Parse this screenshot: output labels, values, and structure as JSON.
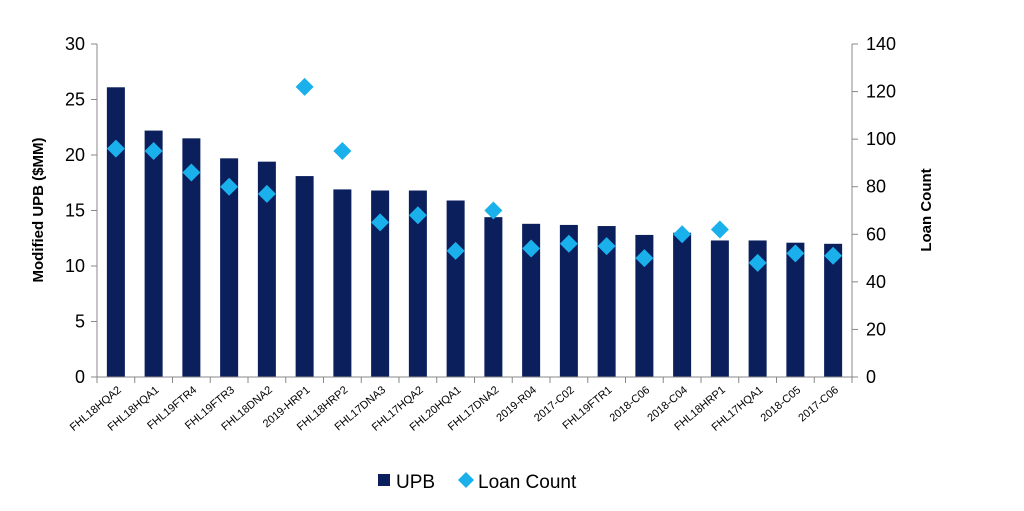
{
  "chart_data": {
    "type": "bar",
    "categories": [
      "FHL18HQA2",
      "FHL18HQA1",
      "FHL19FTR4",
      "FHL19FTR3",
      "FHL18DNA2",
      "2019-HRP1",
      "FHL18HRP2",
      "FHL17DNA3",
      "FHL17HQA2",
      "FHL20HQA1",
      "FHL17DNA2",
      "2019-R04",
      "2017-C02",
      "FHL19FTR1",
      "2018-C06",
      "2018-C04",
      "FHL18HRP1",
      "FHL17HQA1",
      "2018-C05",
      "2017-C06"
    ],
    "series": [
      {
        "name": "UPB",
        "type": "bar",
        "axis": "left",
        "color": "#0a1f5c",
        "values": [
          26.1,
          22.2,
          21.5,
          19.7,
          19.4,
          18.1,
          16.9,
          16.8,
          16.8,
          15.9,
          14.4,
          13.8,
          13.7,
          13.6,
          12.8,
          13.0,
          12.3,
          12.3,
          12.1,
          12.0
        ]
      },
      {
        "name": "Loan Count",
        "type": "scatter",
        "axis": "right",
        "marker": "diamond",
        "color": "#1ab0ec",
        "values": [
          96,
          95,
          86,
          80,
          77,
          122,
          95,
          65,
          68,
          53,
          70,
          54,
          56,
          55,
          50,
          60,
          62,
          48,
          52,
          51
        ]
      }
    ],
    "ylabel": "Modified UPB ($MM)",
    "y2label": "Loan Count",
    "ylim": [
      0,
      30
    ],
    "y2lim": [
      0,
      140
    ],
    "yticks": [
      0,
      5,
      10,
      15,
      20,
      25,
      30
    ],
    "y2ticks": [
      0,
      20,
      40,
      60,
      80,
      100,
      120,
      140
    ],
    "grid": false,
    "legend": "bottom"
  }
}
